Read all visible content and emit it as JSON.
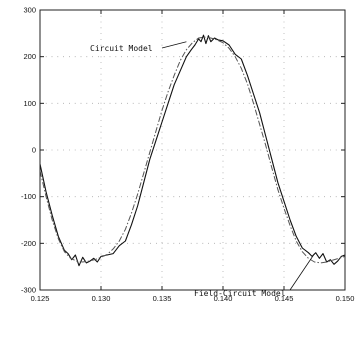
{
  "chart_data": {
    "type": "line",
    "title": "",
    "xlabel": "",
    "ylabel": "",
    "xlim": [
      0.125,
      0.15
    ],
    "ylim": [
      -300,
      300
    ],
    "x_ticks": [
      "0.125",
      "0.130",
      "0.135",
      "0.140",
      "0.145",
      "0.150"
    ],
    "y_ticks": [
      "300",
      "200",
      "100",
      "0",
      "-100",
      "-200",
      "-300"
    ],
    "grid": "dotted",
    "series": [
      {
        "name": "Circuit Model",
        "style": "solid",
        "color": "#111111",
        "x": [
          0.125,
          0.1255,
          0.126,
          0.1265,
          0.127,
          0.1273,
          0.1276,
          0.1279,
          0.1282,
          0.1285,
          0.1288,
          0.1291,
          0.1294,
          0.1297,
          0.13,
          0.1305,
          0.131,
          0.1315,
          0.132,
          0.1325,
          0.133,
          0.1335,
          0.134,
          0.1345,
          0.135,
          0.1355,
          0.136,
          0.1365,
          0.137,
          0.1374,
          0.1377,
          0.138,
          0.1382,
          0.1384,
          0.1386,
          0.1388,
          0.139,
          0.1393,
          0.1396,
          0.14,
          0.1405,
          0.141,
          0.1415,
          0.142,
          0.1425,
          0.143,
          0.1435,
          0.144,
          0.1445,
          0.145,
          0.1455,
          0.146,
          0.1465,
          0.147,
          0.1473,
          0.1476,
          0.1479,
          0.1482,
          0.1485,
          0.1488,
          0.1491,
          0.1494,
          0.1497,
          0.15
        ],
        "y": [
          -30,
          -90,
          -140,
          -185,
          -215,
          -222,
          -235,
          -225,
          -248,
          -230,
          -242,
          -238,
          -232,
          -240,
          -228,
          -225,
          -222,
          -205,
          -195,
          -160,
          -120,
          -70,
          -20,
          20,
          60,
          100,
          140,
          170,
          200,
          215,
          225,
          238,
          232,
          246,
          228,
          245,
          232,
          240,
          236,
          234,
          225,
          205,
          195,
          160,
          120,
          80,
          30,
          -20,
          -70,
          -110,
          -150,
          -185,
          -210,
          -220,
          -228,
          -220,
          -232,
          -222,
          -240,
          -235,
          -245,
          -238,
          -228,
          -225
        ]
      },
      {
        "name": "Field-Circuit Model",
        "style": "dash-dot",
        "color": "#555555",
        "x": [
          0.125,
          0.1255,
          0.126,
          0.1265,
          0.127,
          0.1275,
          0.128,
          0.1285,
          0.129,
          0.1295,
          0.13,
          0.1305,
          0.131,
          0.1315,
          0.132,
          0.1325,
          0.133,
          0.1335,
          0.134,
          0.1345,
          0.135,
          0.1355,
          0.136,
          0.1365,
          0.137,
          0.1375,
          0.138,
          0.1385,
          0.139,
          0.1395,
          0.14,
          0.1405,
          0.141,
          0.1415,
          0.142,
          0.1425,
          0.143,
          0.1435,
          0.144,
          0.1445,
          0.145,
          0.1455,
          0.146,
          0.1465,
          0.147,
          0.1475,
          0.148,
          0.1485,
          0.149,
          0.1495,
          0.15
        ],
        "y": [
          -45,
          -100,
          -150,
          -190,
          -218,
          -232,
          -238,
          -240,
          -238,
          -235,
          -230,
          -224,
          -212,
          -195,
          -170,
          -135,
          -95,
          -50,
          -5,
          40,
          85,
          125,
          160,
          192,
          215,
          230,
          240,
          242,
          240,
          236,
          230,
          218,
          200,
          175,
          142,
          100,
          55,
          10,
          -38,
          -85,
          -125,
          -162,
          -195,
          -218,
          -232,
          -240,
          -242,
          -240,
          -236,
          -232,
          -228
        ]
      }
    ],
    "annotations": [
      {
        "text": "Circuit Model",
        "target_series": "Circuit Model",
        "x": 0.137,
        "y": 232
      },
      {
        "text": "Field-Circuit Model",
        "target_series": "Field-Circuit Model",
        "x": 0.1475,
        "y": -222
      }
    ]
  }
}
